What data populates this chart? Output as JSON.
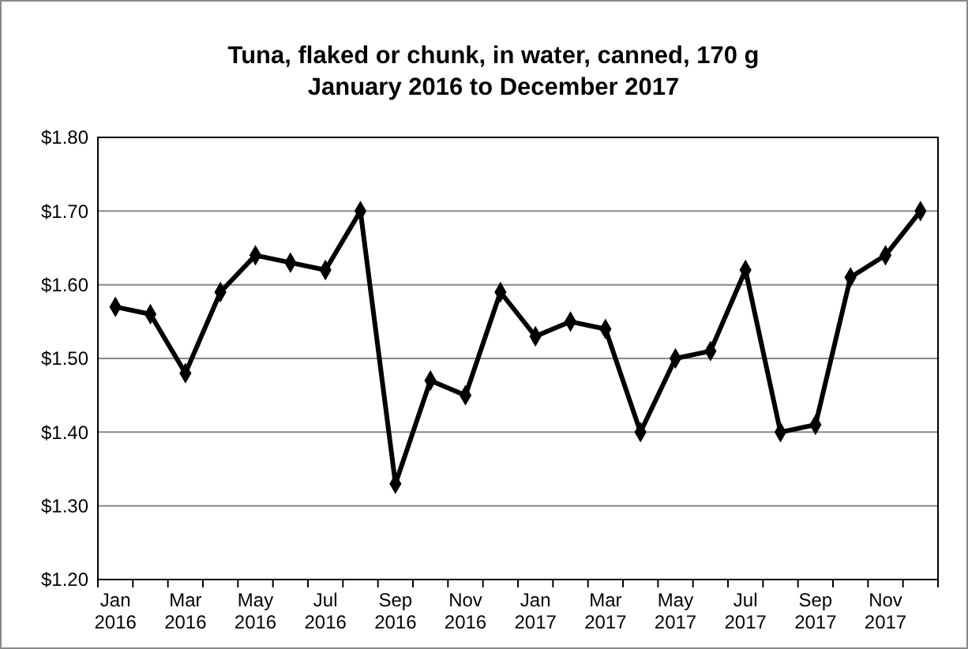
{
  "chart_data": {
    "type": "line",
    "title": "Tuna, flaked or chunk, in water, canned, 170 g\nJanuary 2016 to December 2017",
    "categories": [
      "Jan 2016",
      null,
      "Mar 2016",
      null,
      "May 2016",
      null,
      "Jul 2016",
      null,
      "Sep 2016",
      null,
      "Nov 2016",
      null,
      "Jan 2017",
      null,
      "Mar 2017",
      null,
      "May 2017",
      null,
      "Jul 2017",
      null,
      "Sep 2017",
      null,
      "Nov 2017",
      null
    ],
    "series": [
      {
        "color": "#000000",
        "values": [
          1.57,
          1.56,
          1.48,
          1.59,
          1.64,
          1.63,
          1.62,
          1.7,
          1.33,
          1.47,
          1.45,
          1.59,
          1.53,
          1.55,
          1.54,
          1.4,
          1.5,
          1.51,
          1.62,
          1.4,
          1.41,
          1.61,
          1.64,
          1.7
        ]
      }
    ],
    "ylim": [
      1.2,
      1.8
    ],
    "yticks": [
      {
        "value": 1.2,
        "label": "$1.20"
      },
      {
        "value": 1.3,
        "label": "$1.30"
      },
      {
        "value": 1.4,
        "label": "$1.40"
      },
      {
        "value": 1.5,
        "label": "$1.50"
      },
      {
        "value": 1.6,
        "label": "$1.60"
      },
      {
        "value": 1.7,
        "label": "$1.70"
      },
      {
        "value": 1.8,
        "label": "$1.80"
      }
    ],
    "grid": "y",
    "marker": "diamond",
    "line_style": "solid"
  }
}
